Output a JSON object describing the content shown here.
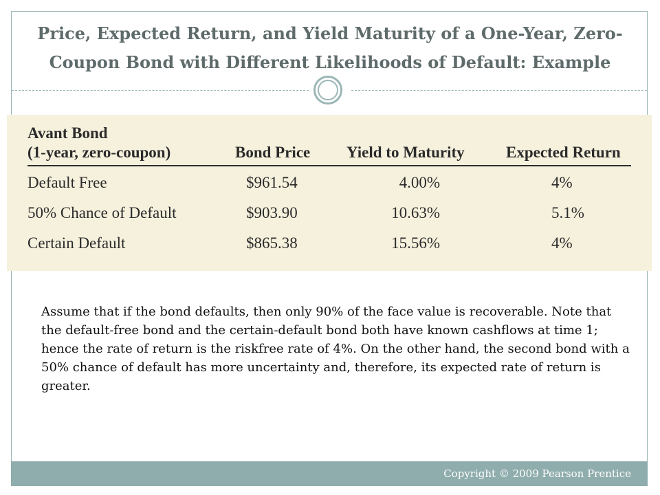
{
  "slide": {
    "title": "Price, Expected Return, and Yield Maturity of a One-Year, Zero-Coupon Bond with Different Likelihoods of Default: Example"
  },
  "table": {
    "headers": {
      "col1_line1": "Avant Bond",
      "col1_line2": "(1-year, zero-coupon)",
      "col2": "Bond Price",
      "col3": "Yield to Maturity",
      "col4": "Expected Return"
    },
    "rows": [
      {
        "label": "Default Free",
        "price": "$961.54",
        "ytm": "4.00%",
        "expected_return": "4%"
      },
      {
        "label": "50% Chance of Default",
        "price": "$903.90",
        "ytm": "10.63%",
        "expected_return": "5.1%"
      },
      {
        "label": "Certain Default",
        "price": "$865.38",
        "ytm": "15.56%",
        "expected_return": "4%"
      }
    ]
  },
  "body": {
    "text": "Assume that if the bond defaults, then only 90% of the face value is recoverable. Note that the default-free bond and the certain-default bond both have known cashflows at time 1; hence the rate of return is the riskfree rate of 4%.  On the other hand, the second bond with a 50% chance of default has more uncertainty and, therefore, its expected rate of return is greater."
  },
  "footer": {
    "copyright": "Copyright © 2009 Pearson Prentice"
  },
  "colors": {
    "accent": "#8fadac",
    "table_background": "#f6f1dd",
    "title": "#5f6b6b"
  }
}
